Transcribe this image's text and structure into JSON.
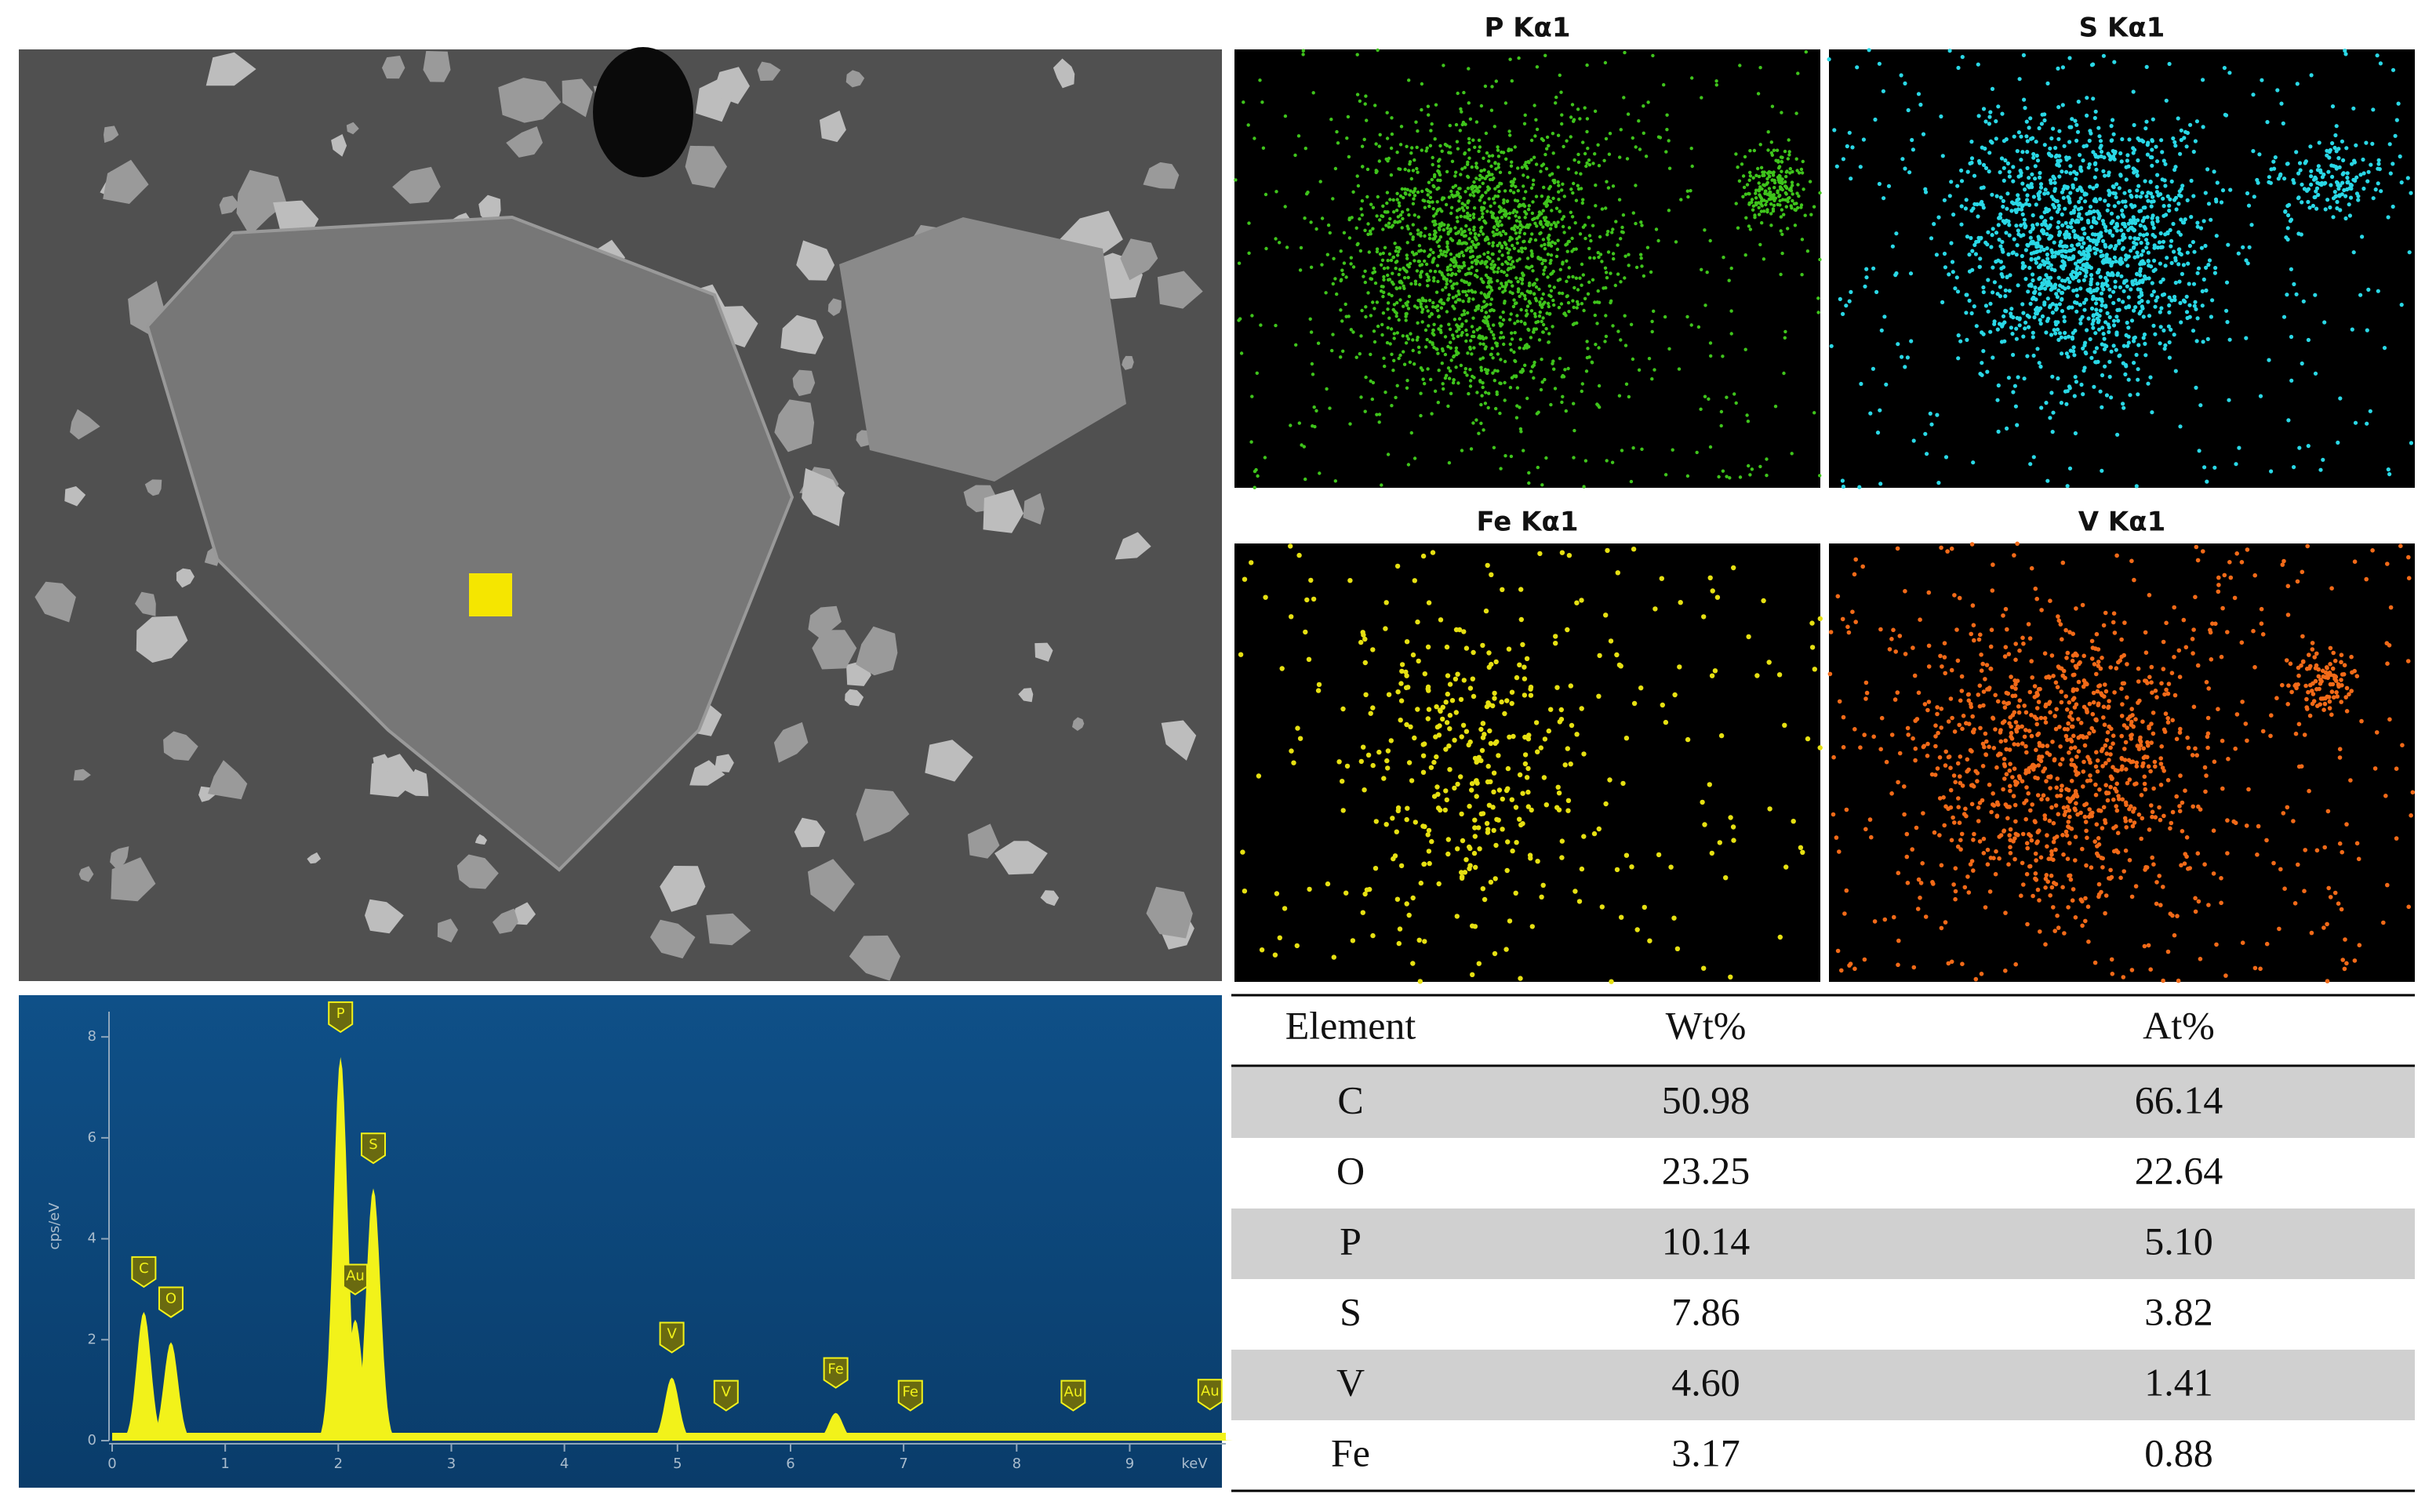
{
  "maps": [
    {
      "label": "P Kα1",
      "color": "#3fc41c"
    },
    {
      "label": "S Kα1",
      "color": "#2ad8e6"
    },
    {
      "label": "Fe Kα1",
      "color": "#e6e012"
    },
    {
      "label": "V Kα1",
      "color": "#f26a18"
    }
  ],
  "chart_data": {
    "type": "spectrum",
    "ylabel": "cps/eV",
    "xunit": "keV",
    "xlim": [
      0,
      9.85
    ],
    "xticks": [
      0,
      1,
      2,
      3,
      4,
      5,
      6,
      7,
      8,
      9
    ],
    "ylim": [
      0,
      8.5
    ],
    "yticks": [
      0,
      2,
      4,
      6,
      8
    ],
    "color": "#f2f21a",
    "peaks": [
      {
        "label": "C",
        "x": 0.28,
        "y": 2.55
      },
      {
        "label": "O",
        "x": 0.52,
        "y": 1.95
      },
      {
        "label": "P",
        "x": 2.02,
        "y": 7.6
      },
      {
        "label": "Au",
        "x": 2.15,
        "y": 2.4
      },
      {
        "label": "S",
        "x": 2.31,
        "y": 5.0
      },
      {
        "label": "V",
        "x": 4.95,
        "y": 1.25
      },
      {
        "label": "V",
        "x": 5.43,
        "y": 0.1
      },
      {
        "label": "Fe",
        "x": 6.4,
        "y": 0.55
      },
      {
        "label": "Fe",
        "x": 7.06,
        "y": 0.1
      },
      {
        "label": "Au",
        "x": 8.5,
        "y": 0.1
      },
      {
        "label": "Au",
        "x": 9.71,
        "y": 0.12
      }
    ]
  },
  "table": {
    "header": [
      "Element",
      "Wt%",
      "At%"
    ],
    "rows": [
      [
        "C",
        "50.98",
        "66.14"
      ],
      [
        "O",
        "23.25",
        "22.64"
      ],
      [
        "P",
        "10.14",
        "5.10"
      ],
      [
        "S",
        "7.86",
        "3.82"
      ],
      [
        "V",
        "4.60",
        "1.41"
      ],
      [
        "Fe",
        "3.17",
        "0.88"
      ]
    ]
  }
}
